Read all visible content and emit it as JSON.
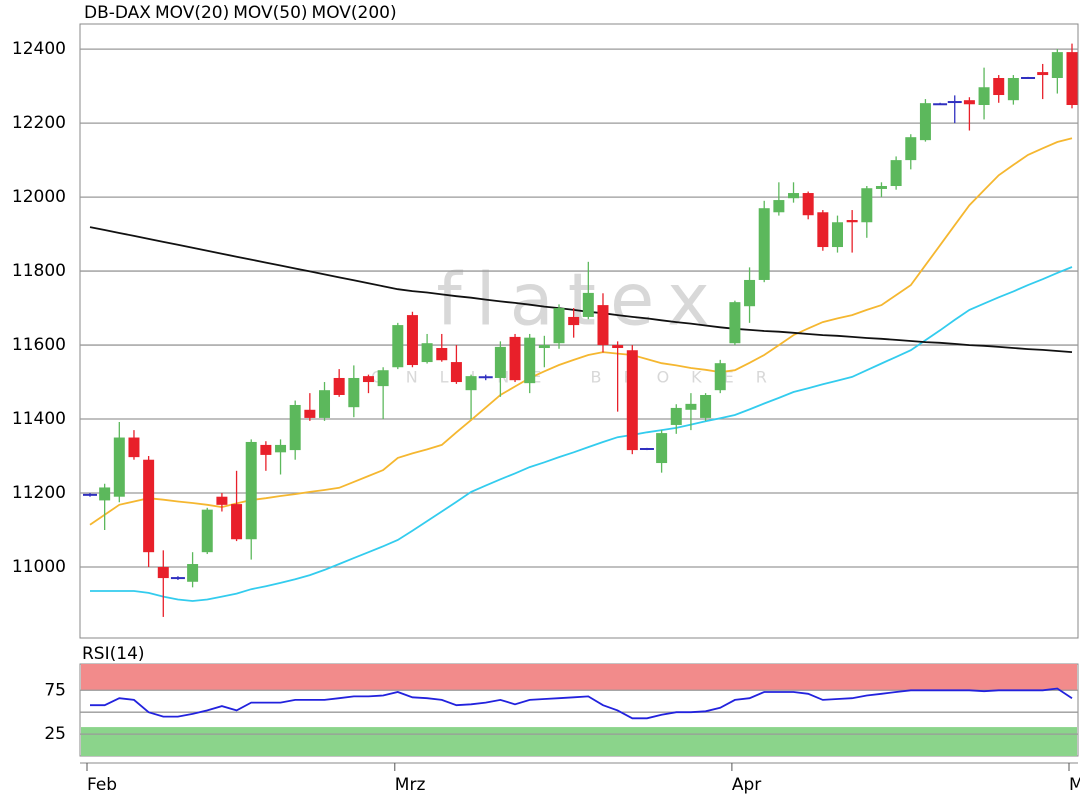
{
  "chart_data": [
    {
      "type": "candlestick",
      "name": "DB-DAX",
      "up_color": "#5cb85c",
      "down_color": "#e8202a",
      "flat_color": "#3030c0",
      "watermark": "flatex",
      "watermark_subtitle": "ONLINE BROKER",
      "categories": [
        null,
        null,
        null,
        null,
        null,
        null,
        null,
        null,
        null,
        null,
        null,
        null,
        null,
        null,
        null,
        null,
        null,
        null,
        null,
        null,
        null,
        null,
        null,
        null,
        null,
        null,
        null,
        null,
        null,
        null,
        null,
        null,
        null,
        null,
        null,
        null,
        null,
        null,
        null,
        null,
        null,
        null,
        null,
        null,
        null,
        null,
        null,
        null,
        null,
        null,
        null,
        null,
        null,
        null,
        null,
        null,
        null,
        null,
        null,
        null,
        null,
        null,
        null,
        null,
        null,
        null,
        null,
        null
      ],
      "xticks": [
        {
          "value": 0,
          "label": "Feb"
        },
        {
          "value": 21,
          "label": "Mrz"
        },
        {
          "value": 44,
          "label": "Apr"
        },
        {
          "value": 67,
          "label": "M"
        }
      ],
      "ylim": [
        10808,
        12468
      ],
      "yticks": [
        11000,
        11200,
        11400,
        11600,
        11800,
        12000,
        12200,
        12400
      ],
      "grid": true,
      "open": [
        11195,
        11180,
        11190,
        11350,
        11290,
        11000,
        10970,
        10960,
        11040,
        11190,
        11170,
        11075,
        11330,
        11310,
        11316,
        11425,
        11403,
        11511,
        11432,
        11516,
        11489,
        11540,
        11681,
        11554,
        11592,
        11554,
        11478,
        11513,
        11511,
        11622,
        11497,
        11592,
        11605,
        11676,
        11676,
        11708,
        11600,
        11586,
        11319,
        11281,
        11384,
        11425,
        11403,
        11478,
        11605,
        11705,
        11776,
        11959,
        11997,
        12011,
        11959,
        11865,
        11938,
        11932,
        12022,
        12030,
        12100,
        12154,
        12251,
        12257,
        12262,
        12249,
        12322,
        12262,
        12322,
        12338,
        12322,
        12392
      ],
      "high": [
        11200,
        11225,
        11392,
        11370,
        11300,
        11045,
        10975,
        11040,
        11160,
        11200,
        11260,
        11345,
        11340,
        11345,
        11450,
        11470,
        11500,
        11535,
        11545,
        11520,
        11540,
        11660,
        11690,
        11630,
        11630,
        11600,
        11520,
        11520,
        11610,
        11630,
        11630,
        11625,
        11710,
        11700,
        11825,
        11740,
        11610,
        11600,
        11322,
        11370,
        11440,
        11470,
        11470,
        11560,
        11720,
        11810,
        11990,
        12040,
        12040,
        12015,
        11965,
        11950,
        11965,
        12030,
        12040,
        12110,
        12170,
        12265,
        12255,
        12275,
        12270,
        12350,
        12330,
        12330,
        12325,
        12360,
        12400,
        12415
      ],
      "low": [
        11190,
        11100,
        11175,
        11290,
        11000,
        10865,
        10965,
        10945,
        11035,
        11150,
        11070,
        11020,
        11260,
        11250,
        11290,
        11395,
        11395,
        11460,
        11405,
        11470,
        11400,
        11535,
        11540,
        11550,
        11555,
        11495,
        11400,
        11505,
        11460,
        11500,
        11470,
        11540,
        11590,
        11620,
        11670,
        11580,
        11420,
        11305,
        11316,
        11255,
        11360,
        11370,
        11395,
        11470,
        11600,
        11660,
        11770,
        11950,
        11985,
        11940,
        11855,
        11850,
        11850,
        11890,
        12000,
        12020,
        12075,
        12150,
        12250,
        12200,
        12180,
        12210,
        12255,
        12250,
        12320,
        12265,
        12280,
        12240
      ],
      "close": [
        11195,
        11215,
        11350,
        11297,
        11040,
        10970,
        10970,
        11008,
        11155,
        11168,
        11075,
        11338,
        11303,
        11330,
        11438,
        11403,
        11478,
        11465,
        11511,
        11500,
        11532,
        11654,
        11546,
        11605,
        11559,
        11500,
        11516,
        11513,
        11595,
        11505,
        11620,
        11600,
        11700,
        11654,
        11741,
        11600,
        11592,
        11316,
        11319,
        11362,
        11430,
        11441,
        11465,
        11551,
        11716,
        11776,
        11970,
        11992,
        12011,
        11951,
        11865,
        11932,
        11932,
        12024,
        12030,
        12100,
        12162,
        12254,
        12251,
        12257,
        12251,
        12297,
        12276,
        12322,
        12322,
        12330,
        12392,
        12249
      ],
      "series": [
        {
          "name": "MOV(20)",
          "color": "#f5b730",
          "values": [
            11114,
            11141,
            11168,
            11177,
            11186,
            11182,
            11177,
            11173,
            11168,
            11162,
            11172,
            11181,
            11186,
            11192,
            11197,
            11203,
            11208,
            11214,
            11230,
            11246,
            11262,
            11295,
            11307,
            11318,
            11330,
            11364,
            11397,
            11431,
            11465,
            11488,
            11511,
            11529,
            11546,
            11560,
            11573,
            11581,
            11577,
            11573,
            11562,
            11551,
            11545,
            11538,
            11533,
            11527,
            11532,
            11552,
            11573,
            11600,
            11627,
            11645,
            11662,
            11672,
            11681,
            11695,
            11708,
            11735,
            11762,
            11816,
            11870,
            11924,
            11978,
            12019,
            12059,
            12087,
            12114,
            12132,
            12149,
            12159
          ]
        },
        {
          "name": "MOV(50)",
          "color": "#33ccee",
          "values": [
            10935,
            10935,
            10935,
            10935,
            10930,
            10920,
            10912,
            10908,
            10912,
            10920,
            10928,
            10940,
            10948,
            10957,
            10967,
            10978,
            10992,
            11008,
            11024,
            11040,
            11056,
            11073,
            11098,
            11124,
            11150,
            11176,
            11203,
            11220,
            11237,
            11253,
            11270,
            11283,
            11297,
            11310,
            11324,
            11338,
            11351,
            11357,
            11364,
            11370,
            11376,
            11385,
            11394,
            11402,
            11411,
            11426,
            11442,
            11457,
            11473,
            11483,
            11494,
            11504,
            11514,
            11532,
            11550,
            11568,
            11586,
            11613,
            11640,
            11668,
            11695,
            11712,
            11729,
            11745,
            11762,
            11778,
            11795,
            11811
          ]
        },
        {
          "name": "MOV(200)",
          "color": "#111111",
          "values": [
            11919,
            11911,
            11903,
            11895,
            11887,
            11879,
            11871,
            11863,
            11855,
            11847,
            11839,
            11831,
            11823,
            11815,
            11807,
            11799,
            11791,
            11783,
            11775,
            11767,
            11759,
            11751,
            11746,
            11742,
            11737,
            11732,
            11728,
            11723,
            11718,
            11714,
            11709,
            11704,
            11700,
            11695,
            11690,
            11686,
            11681,
            11676,
            11672,
            11667,
            11662,
            11658,
            11653,
            11648,
            11644,
            11641,
            11638,
            11636,
            11633,
            11630,
            11627,
            11625,
            11622,
            11619,
            11617,
            11614,
            11611,
            11608,
            11606,
            11603,
            11600,
            11598,
            11595,
            11592,
            11589,
            11587,
            11584,
            11581
          ]
        }
      ]
    },
    {
      "type": "line",
      "title": "RSI(14)",
      "ylim": [
        0,
        105
      ],
      "yticks": [
        25,
        75
      ],
      "midline": 50,
      "bands": [
        {
          "from": 75,
          "to": 105,
          "color": "#f28b8b"
        },
        {
          "from": 0,
          "to": 33,
          "color": "#8bd48b"
        }
      ],
      "series": [
        {
          "name": "RSI(14)",
          "color": "#2222dd",
          "values": [
            58,
            58,
            66,
            64,
            50,
            45,
            45,
            48,
            52,
            57,
            52,
            61,
            61,
            61,
            64,
            64,
            64,
            66,
            68,
            68,
            69,
            73,
            67,
            66,
            64,
            58,
            59,
            61,
            64,
            59,
            64,
            65,
            66,
            67,
            68,
            58,
            52,
            43,
            43,
            47,
            50,
            50,
            51,
            55,
            64,
            66,
            73,
            73,
            73,
            71,
            64,
            65,
            66,
            69,
            71,
            73,
            75,
            75,
            75,
            75,
            75,
            74,
            75,
            75,
            75,
            75,
            77,
            66
          ]
        }
      ]
    }
  ]
}
